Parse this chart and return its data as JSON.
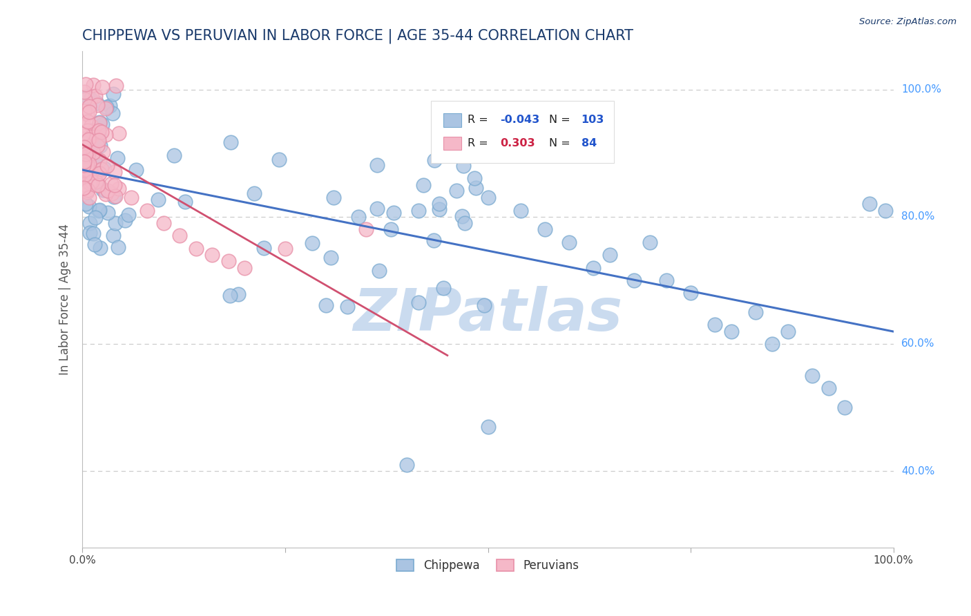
{
  "title": "CHIPPEWA VS PERUVIAN IN LABOR FORCE | AGE 35-44 CORRELATION CHART",
  "source_text": "Source: ZipAtlas.com",
  "ylabel": "In Labor Force | Age 35-44",
  "xlim": [
    0.0,
    1.0
  ],
  "ylim": [
    0.28,
    1.06
  ],
  "yticks": [
    0.4,
    0.6,
    0.8,
    1.0
  ],
  "ytick_labels": [
    "40.0%",
    "60.0%",
    "80.0%",
    "100.0%"
  ],
  "legend_r_blue": "-0.043",
  "legend_n_blue": "103",
  "legend_r_pink": "0.303",
  "legend_n_pink": "84",
  "blue_color": "#aac4e2",
  "blue_edge_color": "#7aaad0",
  "pink_color": "#f5b8c8",
  "pink_edge_color": "#e890a8",
  "blue_line_color": "#4472C4",
  "pink_line_color": "#d05070",
  "title_color": "#1a3a6b",
  "source_color": "#1a3a6b",
  "axis_label_color": "#555555",
  "right_label_color": "#4499FF",
  "grid_color": "#CCCCCC",
  "watermark_color": "#c5d8ee",
  "legend_r_blue_color": "#2255cc",
  "legend_r_pink_color": "#cc2244",
  "legend_n_color": "#2255cc"
}
